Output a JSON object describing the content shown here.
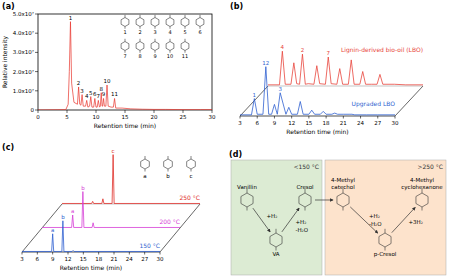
{
  "chart_data": [
    {
      "type": "line",
      "title": "(a)",
      "xlabel": "Retention time (min)",
      "ylabel": "Relative intensity",
      "xlim": [
        0,
        30
      ],
      "xticks": [
        0,
        5,
        10,
        15,
        20,
        25,
        30
      ],
      "ylim": [
        0,
        50000000
      ],
      "yticks": [
        0,
        {
          "value": 10000000,
          "label": "1.0x10⁷"
        },
        {
          "value": 20000000,
          "label": "2.0x10⁷"
        },
        {
          "value": 30000000,
          "label": "3.0x10⁷"
        },
        {
          "value": 40000000,
          "label": "4.0x10⁷"
        },
        {
          "value": 50000000,
          "label": "5.0x10⁷"
        }
      ],
      "color": "#e8322a",
      "x": [
        0,
        4.8,
        5.2,
        5.4,
        5.6,
        5.8,
        6.2,
        6.8,
        7,
        7.2,
        7.4,
        7.6,
        7.8,
        8.2,
        8.4,
        8.6,
        8.9,
        9.1,
        9.3,
        9.6,
        9.8,
        10,
        10.2,
        10.4,
        10.6,
        10.75,
        10.9,
        11.05,
        11.15,
        11.3,
        11.45,
        11.7,
        11.9,
        12.1,
        12.6,
        13,
        13.2,
        13.4,
        14.5,
        16,
        18,
        20,
        22,
        25,
        28,
        30
      ],
      "values": [
        0,
        200000,
        3000000,
        20000000,
        46000000,
        14000000,
        4000000,
        3000000,
        12000000,
        3000000,
        2500000,
        8000000,
        2000000,
        2000000,
        5000000,
        1500000,
        2000000,
        7000000,
        1500000,
        1500000,
        6000000,
        1500000,
        1500000,
        5000000,
        1500000,
        2000000,
        9000000,
        2000000,
        2000000,
        6000000,
        2000000,
        2000000,
        13000000,
        2000000,
        1500000,
        1500000,
        6000000,
        1000000,
        1000000,
        600000,
        400000,
        300000,
        300000,
        200000,
        200000,
        200000
      ],
      "annotations": [
        {
          "text": "1",
          "x": 5.6,
          "y": 46000000
        },
        {
          "text": "2",
          "x": 7,
          "y": 12000000
        },
        {
          "text": "3",
          "x": 7.6,
          "y": 8000000
        },
        {
          "text": "4",
          "x": 8.4,
          "y": 5000000
        },
        {
          "text": "5",
          "x": 9.1,
          "y": 7000000
        },
        {
          "text": "6",
          "x": 9.8,
          "y": 6000000
        },
        {
          "text": "7",
          "x": 10.4,
          "y": 5000000
        },
        {
          "text": "8",
          "x": 10.9,
          "y": 9000000
        },
        {
          "text": "9",
          "x": 11.3,
          "y": 6000000
        },
        {
          "text": "10",
          "x": 11.9,
          "y": 13000000
        },
        {
          "text": "11",
          "x": 13.2,
          "y": 6000000
        }
      ],
      "structure_labels": [
        "1",
        "2",
        "3",
        "4",
        "5",
        "6",
        "7",
        "8",
        "9",
        "10",
        "11"
      ]
    },
    {
      "type": "waterfall",
      "title": "(b)",
      "xlabel": "Retention time (min)",
      "xlim": [
        3,
        30
      ],
      "xticks": [
        3,
        6,
        9,
        12,
        15,
        18,
        21,
        24,
        27,
        30
      ],
      "ylim": [
        0,
        100
      ],
      "tick_labels": "x",
      "x": [
        3,
        5,
        5.5,
        6,
        7,
        7.5,
        8,
        8.5,
        9,
        9.5,
        10,
        11,
        11.5,
        12,
        13,
        13.5,
        14,
        15,
        15.5,
        16,
        17,
        17.5,
        18,
        19,
        19.5,
        20,
        21,
        22,
        22.5,
        23,
        25,
        27,
        30
      ],
      "series": [
        {
          "name": "Lignin-derived bio-oil (LBO)",
          "color": "#e8453c",
          "values": [
            2,
            2,
            60,
            3,
            3,
            40,
            4,
            3,
            55,
            3,
            4,
            3,
            35,
            4,
            3,
            50,
            4,
            3,
            30,
            3,
            3,
            45,
            3,
            3,
            25,
            3,
            3,
            3,
            20,
            3,
            3,
            2,
            2
          ]
        },
        {
          "name": "Upgraded LBO",
          "color": "#2f5fd0",
          "values": [
            2,
            2,
            30,
            3,
            3,
            85,
            3,
            3,
            20,
            3,
            40,
            3,
            15,
            3,
            3,
            25,
            3,
            3,
            10,
            3,
            3,
            8,
            3,
            3,
            5,
            3,
            3,
            3,
            3,
            2,
            2,
            2,
            2
          ]
        }
      ],
      "annotations": [
        {
          "text": "4",
          "x": 5.5,
          "y": 60,
          "series": 0
        },
        {
          "text": "2",
          "x": 9,
          "y": 55,
          "series": 0
        },
        {
          "text": "7",
          "x": 13.5,
          "y": 50,
          "series": 0
        },
        {
          "text": "1",
          "x": 5.5,
          "y": 30,
          "series": 1
        },
        {
          "text": "12",
          "x": 7.5,
          "y": 85,
          "series": 1
        },
        {
          "text": "3",
          "x": 10,
          "y": 40,
          "series": 1
        }
      ]
    },
    {
      "type": "waterfall",
      "title": "(c)",
      "xlabel": "Retention time (min)",
      "xlim": [
        3,
        30
      ],
      "xticks": [
        3,
        6,
        9,
        12,
        15,
        18,
        21,
        24,
        27,
        30
      ],
      "ylim": [
        0,
        100
      ],
      "tick_labels": "x",
      "x": [
        3,
        8.8,
        9,
        9.2,
        10.8,
        11,
        11.2,
        12.8,
        13,
        13.2,
        30
      ],
      "series": [
        {
          "name": "250 °C",
          "color": "#e0302a",
          "values": [
            1,
            1,
            5,
            1,
            1,
            10,
            1,
            1,
            95,
            1,
            1
          ]
        },
        {
          "name": "200 °C",
          "color": "#d63fd6",
          "values": [
            1,
            1,
            25,
            1,
            1,
            70,
            1,
            1,
            10,
            1,
            1
          ]
        },
        {
          "name": "150 °C",
          "color": "#2f5fd0",
          "values": [
            1,
            1,
            35,
            1,
            1,
            60,
            1,
            1,
            3,
            1,
            1
          ]
        }
      ],
      "annotations": [
        {
          "text": "c",
          "x": 13,
          "y": 95,
          "series": 0
        },
        {
          "text": "a",
          "x": 9,
          "y": 25,
          "series": 1
        },
        {
          "text": "b",
          "x": 11,
          "y": 70,
          "series": 1
        },
        {
          "text": "a",
          "x": 9,
          "y": 35,
          "series": 2
        },
        {
          "text": "b",
          "x": 11,
          "y": 60,
          "series": 2
        }
      ],
      "structure_labels": [
        "a",
        "b",
        "c"
      ]
    }
  ],
  "diagram": {
    "title": "(d)",
    "groups": [
      {
        "label": "<150 °C",
        "color": "#dcebd3"
      },
      {
        "label": ">250 °C",
        "color": "#fde3cc"
      }
    ],
    "nodes": [
      {
        "label": [
          "Vanillin"
        ],
        "group": 0
      },
      {
        "label": [
          "VA"
        ],
        "group": 0
      },
      {
        "label": [
          "Cresol"
        ],
        "group": 0
      },
      {
        "label": [
          "4-Methyl",
          "catechol"
        ],
        "group": 1
      },
      {
        "label": [
          "p-Cresol"
        ],
        "group": 1
      },
      {
        "label": [
          "4-Methyl",
          "cyclohexanone"
        ],
        "group": 1
      }
    ],
    "edges": [
      {
        "from": 0,
        "to": 1,
        "labels": [
          "+H₂"
        ]
      },
      {
        "from": 1,
        "to": 2,
        "labels": [
          "+H₂",
          "-H₂O"
        ]
      },
      {
        "from": 2,
        "to": 3,
        "labels": []
      },
      {
        "from": 3,
        "to": 4,
        "labels": [
          "+H₂",
          "-H₂O"
        ]
      },
      {
        "from": 4,
        "to": 5,
        "labels": [
          "+3H₂"
        ]
      }
    ]
  }
}
